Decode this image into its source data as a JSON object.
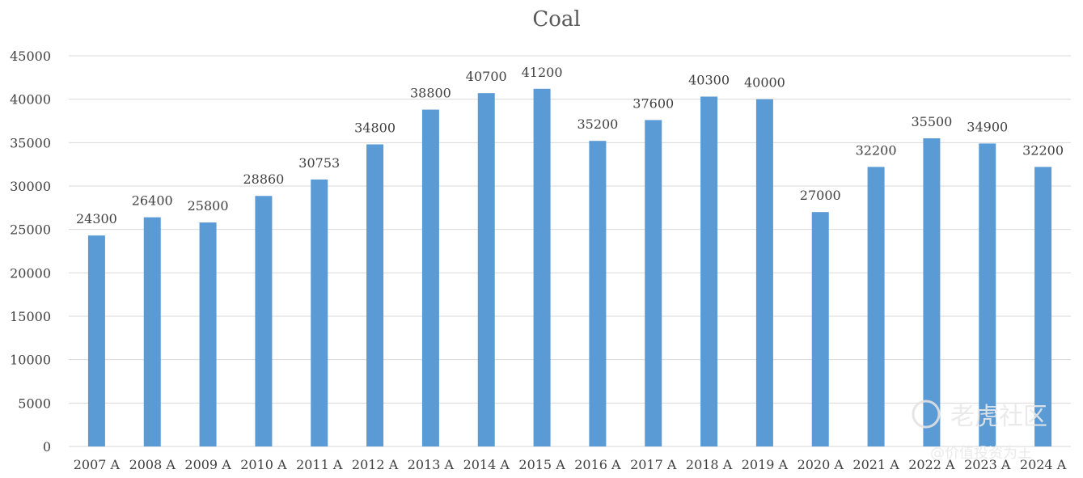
{
  "chart_data": {
    "type": "bar",
    "title": "Coal",
    "xlabel": "",
    "ylabel": "",
    "ylim": [
      0,
      45000
    ],
    "yticks": [
      0,
      5000,
      10000,
      15000,
      20000,
      25000,
      30000,
      35000,
      40000,
      45000
    ],
    "grid": true,
    "legend": "none",
    "categories": [
      "2007 A",
      "2008 A",
      "2009 A",
      "2010 A",
      "2011 A",
      "2012 A",
      "2013 A",
      "2014 A",
      "2015 A",
      "2016 A",
      "2017 A",
      "2018 A",
      "2019 A",
      "2020 A",
      "2021 A",
      "2022 A",
      "2023 A",
      "2024 A"
    ],
    "values": [
      24300,
      26400,
      25800,
      28860,
      30753,
      34800,
      38800,
      40700,
      41200,
      35200,
      37600,
      40300,
      40000,
      27000,
      32200,
      35500,
      34900,
      32200
    ],
    "bar_color": "#5b9bd5"
  },
  "watermark": {
    "brand": "老虎社区",
    "author": "@价值投资为王"
  }
}
